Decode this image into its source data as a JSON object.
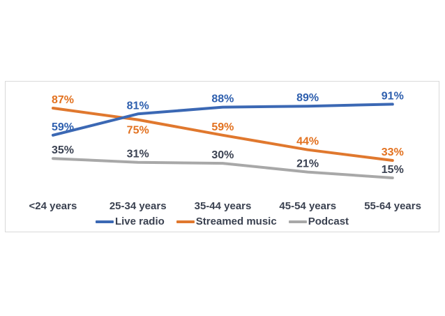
{
  "chart_data": {
    "type": "line",
    "title": "",
    "categories": [
      "<24 years",
      "25-34 years",
      "35-44 years",
      "45-54 years",
      "55-64 years"
    ],
    "series": [
      {
        "name": "Live radio",
        "values": [
          59,
          81,
          88,
          89,
          91
        ],
        "color": "#3b68b4",
        "label_color": "#2e5fae"
      },
      {
        "name": "Streamed music",
        "values": [
          87,
          75,
          59,
          44,
          33
        ],
        "color": "#e0782e",
        "label_color": "#e2711f"
      },
      {
        "name": "Podcast",
        "values": [
          35,
          31,
          30,
          21,
          15
        ],
        "color": "#a8a8a8",
        "label_color": "#3b4252"
      }
    ],
    "data_label_format": "{value}%",
    "legend_position": "bottom",
    "ylim": [
      0,
      100
    ],
    "grid": false,
    "axis_text_color": "#3a4150",
    "legend_text_color": "#3a4150",
    "chart_border_color": "#d9d9d9",
    "background_color": "#ffffff"
  }
}
